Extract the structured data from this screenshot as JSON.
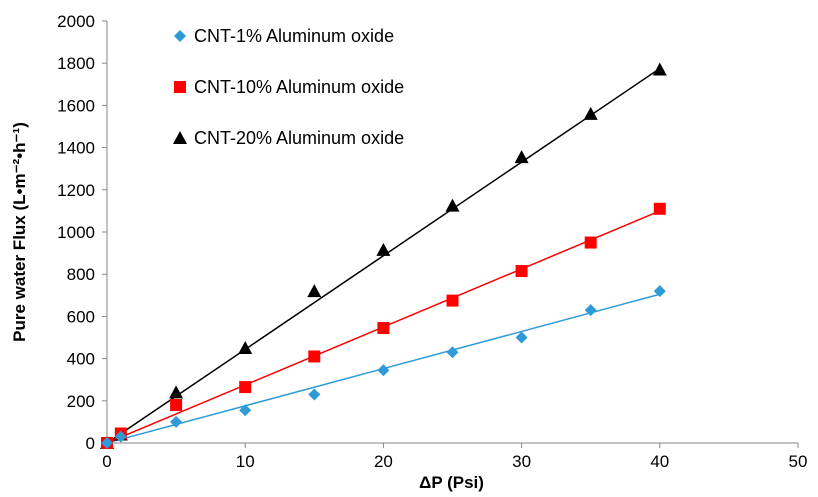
{
  "chart_data": {
    "type": "scatter",
    "title": "",
    "xlabel": "ΔP (Psi)",
    "ylabel": "Pure water Flux (L•m⁻²•h⁻¹)",
    "xlim": [
      0,
      50
    ],
    "ylim": [
      0,
      2000
    ],
    "xticks": [
      "0",
      "10",
      "20",
      "30",
      "40",
      "50"
    ],
    "yticks": [
      "0",
      "200",
      "400",
      "600",
      "800",
      "1000",
      "1200",
      "1400",
      "1600",
      "1800",
      "2000"
    ],
    "grid": false,
    "legend_position": "top-left",
    "trendlines": "linear",
    "series": [
      {
        "name": "CNT-1% Aluminum oxide",
        "marker": "diamond",
        "color": "#2E9BD6",
        "x": [
          0,
          1,
          5,
          10,
          15,
          20,
          25,
          30,
          35,
          40
        ],
        "y": [
          0,
          30,
          100,
          155,
          230,
          345,
          430,
          500,
          630,
          720
        ],
        "trend_end": [
          40,
          705
        ]
      },
      {
        "name": "CNT-10% Aluminum oxide",
        "marker": "square",
        "color": "#FF0000",
        "x": [
          0,
          1,
          5,
          10,
          15,
          20,
          25,
          30,
          35,
          40
        ],
        "y": [
          0,
          45,
          180,
          265,
          410,
          545,
          675,
          815,
          950,
          1110
        ],
        "trend_end": [
          40,
          1100
        ]
      },
      {
        "name": "CNT-20% Aluminum oxide",
        "marker": "triangle",
        "color": "#000000",
        "x": [
          0,
          1,
          5,
          10,
          15,
          20,
          25,
          30,
          35,
          40
        ],
        "y": [
          0,
          40,
          240,
          450,
          720,
          915,
          1125,
          1355,
          1560,
          1770
        ],
        "trend_end": [
          40,
          1775
        ]
      }
    ]
  }
}
